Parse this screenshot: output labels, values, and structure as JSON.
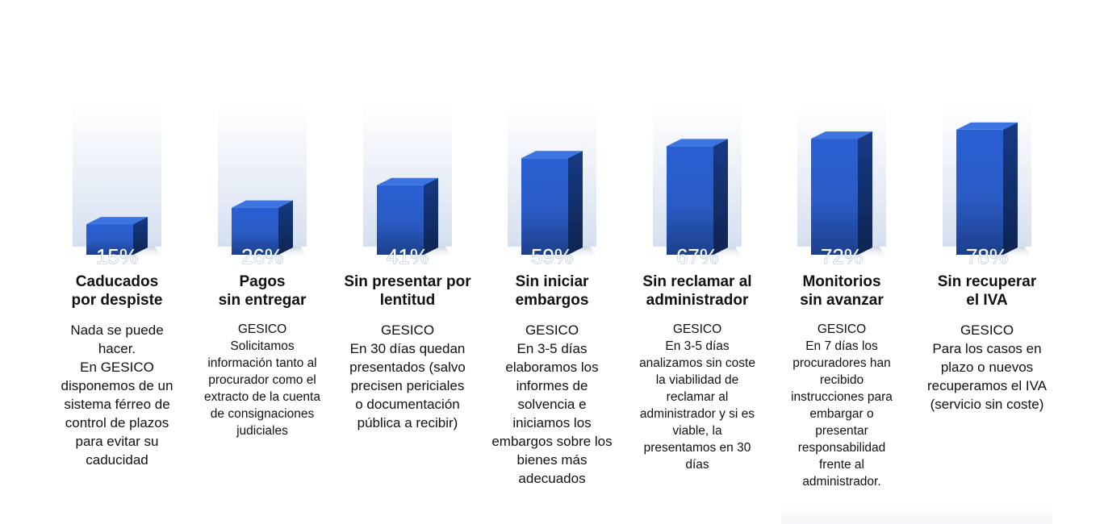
{
  "chart_data": {
    "type": "bar",
    "categories": [
      "Caducados por despiste",
      "Pagos sin entregar",
      "Sin presentar por lentitud",
      "Sin iniciar embargos",
      "Sin reclamar al administrador",
      "Monitorios sin avanzar",
      "Sin recuperar el IVA"
    ],
    "values": [
      15,
      26,
      41,
      59,
      67,
      72,
      78
    ],
    "value_labels": [
      "15%",
      "26%",
      "41%",
      "59%",
      "67%",
      "72%",
      "78%"
    ],
    "ylim": [
      0,
      100
    ],
    "grid": false,
    "colors": {
      "bar_front_top": "#2b62d6",
      "bar_front_bottom": "#1a3a7e",
      "bar_side": "#12306e",
      "bar_top": "#3f78e6",
      "background_column": "#dfe7f3"
    }
  },
  "columns": [
    {
      "title": "Caducados\npor despiste",
      "description": "Nada se puede\nhacer.\nEn GESICO\ndisponemos de un\nsistema férreo de\ncontrol de plazos\npara evitar su\ncaducidad"
    },
    {
      "title": "Pagos\nsin entregar",
      "description": "GESICO\nSolicitamos\ninformación tanto al\nprocurador como el\nextracto de la cuenta\nde consignaciones\njudiciales"
    },
    {
      "title": "Sin presentar por\nlentitud",
      "description": "GESICO\nEn 30 días quedan\npresentados (salvo\nprecisen periciales\no documentación\npública a recibir)"
    },
    {
      "title": "Sin iniciar\nembargos",
      "description": "GESICO\nEn 3-5 días\nelaboramos los\ninformes de\nsolvencia e\niniciamos los\nembargos sobre los\nbienes más\nadecuados"
    },
    {
      "title": "Sin reclamar al\nadministrador",
      "description": "GESICO\nEn 3-5 días\nanalizamos sin coste\nla viabilidad de\nreclamar al\nadministrador y si es\nviable, la\npresentamos en 30\ndías"
    },
    {
      "title": "Monitorios\nsin avanzar",
      "description": "GESICO\nEn 7 días los\nprocuradores han\nrecibido\ninstrucciones para\nembargar o\npresentar\nresponsabilidad\nfrente al\nadministrador."
    },
    {
      "title": "Sin recuperar\nel IVA",
      "description": "GESICO\nPara los casos en\nplazo o nuevos\nrecuperamos el IVA\n(servicio sin coste)"
    }
  ]
}
